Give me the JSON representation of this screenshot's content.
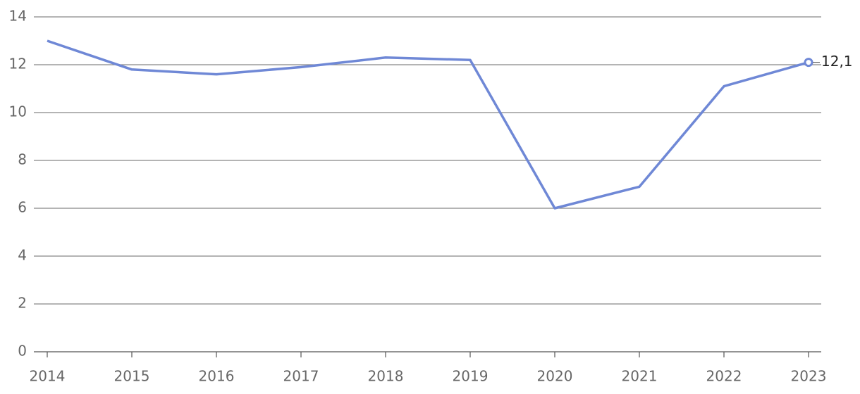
{
  "chart_data": {
    "type": "line",
    "categories": [
      "2014",
      "2015",
      "2016",
      "2017",
      "2018",
      "2019",
      "2020",
      "2021",
      "2022",
      "2023"
    ],
    "series": [
      {
        "color": "#6f88d6",
        "values": [
          13.0,
          11.8,
          11.6,
          11.9,
          12.3,
          12.2,
          6.0,
          6.9,
          11.1,
          12.1
        ],
        "value_labels": [
          null,
          null,
          null,
          null,
          null,
          null,
          null,
          null,
          null,
          "12,1"
        ]
      }
    ],
    "ylim": [
      0,
      14
    ],
    "yticks": [
      0,
      2,
      4,
      6,
      8,
      10,
      12,
      14
    ],
    "grid": true
  }
}
